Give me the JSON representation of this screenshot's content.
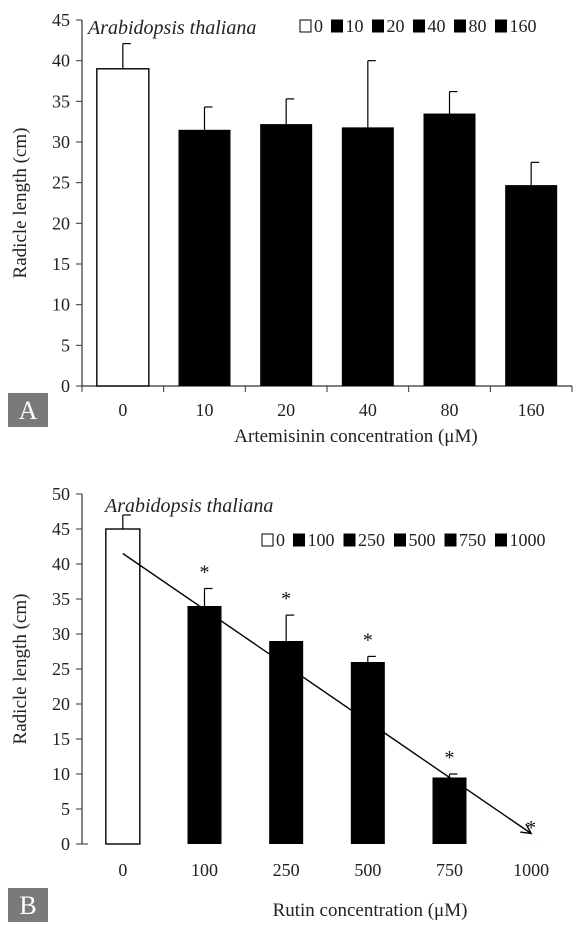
{
  "chart_data": [
    {
      "type": "bar",
      "panel": "A",
      "species": "Arabidopsis thaliana",
      "xlabel": "Artemisinin concentration  (μM)",
      "ylabel": "Radicle  length (cm)",
      "categories": [
        "0",
        "10",
        "20",
        "40",
        "80",
        "160"
      ],
      "values": [
        39,
        31.5,
        32.2,
        31.8,
        33.5,
        24.7
      ],
      "errors": [
        3.1,
        2.8,
        3.1,
        8.2,
        2.7,
        2.8
      ],
      "fills": [
        "#ffffff",
        "#000000",
        "#000000",
        "#000000",
        "#000000",
        "#000000"
      ],
      "ylim": [
        0,
        45
      ],
      "yticks": [
        "0",
        "5",
        "10",
        "15",
        "20",
        "25",
        "30",
        "35",
        "40",
        "45"
      ],
      "legend": [
        "0",
        "10",
        "20",
        "40",
        "80",
        "160"
      ],
      "legend_position": "top-right"
    },
    {
      "type": "bar",
      "panel": "B",
      "species": "Arabidopsis thaliana",
      "xlabel": "Rutin concentration (μM)",
      "ylabel": "Radicle length (cm)",
      "categories": [
        "0",
        "100",
        "250",
        "500",
        "750",
        "1000"
      ],
      "values": [
        45,
        34,
        29,
        26,
        9.5,
        0
      ],
      "errors": [
        2.0,
        2.5,
        3.7,
        0.8,
        0.5,
        0
      ],
      "fills": [
        "#ffffff",
        "#000000",
        "#000000",
        "#000000",
        "#000000",
        "#000000"
      ],
      "significance": [
        "",
        "*",
        "*",
        "*",
        "*",
        "*"
      ],
      "ylim": [
        0,
        50
      ],
      "yticks": [
        "0",
        "5",
        "10",
        "15",
        "20",
        "25",
        "30",
        "35",
        "40",
        "45",
        "50"
      ],
      "legend": [
        "0",
        "100",
        "250",
        "500",
        "750",
        "1000"
      ],
      "legend_position": "top-right",
      "trendline": {
        "from": [
          0,
          41.5
        ],
        "to": [
          5,
          1.5
        ]
      }
    }
  ],
  "colors": {
    "panel_label_bg": "#7a7a7a",
    "bar_dark": "#000000",
    "bar_light": "#ffffff"
  }
}
